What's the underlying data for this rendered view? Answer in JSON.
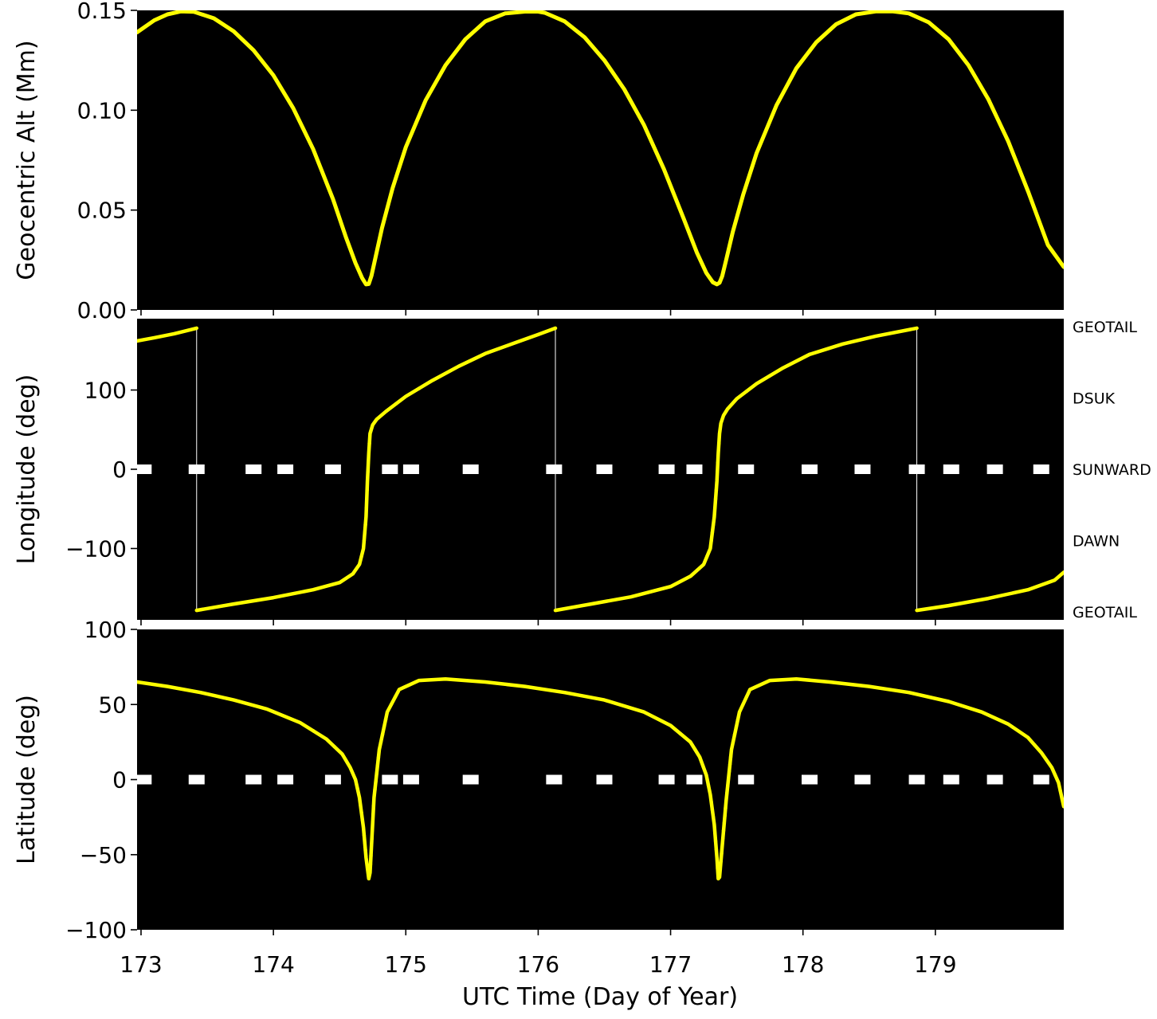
{
  "figure": {
    "xlabel": "UTC Time (Day of Year)",
    "background": "#000000",
    "trace_color": "#ffff00",
    "marker_color": "#ffffff"
  },
  "chart_data": [
    {
      "type": "line",
      "ylabel": "Geocentric Alt (Mm)",
      "xlim": [
        172.97,
        179.97
      ],
      "ylim": [
        0.0,
        0.15
      ],
      "yticks": [
        0.0,
        0.05,
        0.1,
        0.15
      ],
      "ytick_labels": [
        "0.00",
        "0.05",
        "0.10",
        "0.15"
      ],
      "series": [
        {
          "x": [
            172.97,
            173.1,
            173.2,
            173.3,
            173.4,
            173.55,
            173.7,
            173.85,
            174.0,
            174.15,
            174.3,
            174.45,
            174.55,
            174.62,
            174.67,
            174.7,
            174.72,
            174.74,
            174.77,
            174.82,
            174.9,
            175.0,
            175.15,
            175.3,
            175.45,
            175.6,
            175.75,
            175.9,
            176.0,
            176.05,
            176.2,
            176.35,
            176.5,
            176.65,
            176.8,
            176.95,
            177.1,
            177.2,
            177.27,
            177.32,
            177.35,
            177.37,
            177.39,
            177.42,
            177.47,
            177.55,
            177.65,
            177.8,
            177.95,
            178.1,
            178.25,
            178.4,
            178.55,
            178.68,
            178.8,
            178.95,
            179.1,
            179.25,
            179.4,
            179.55,
            179.7,
            179.85,
            179.97
          ],
          "y": [
            0.139,
            0.145,
            0.148,
            0.1495,
            0.1493,
            0.146,
            0.1395,
            0.13,
            0.1175,
            0.101,
            0.0805,
            0.0555,
            0.036,
            0.0235,
            0.016,
            0.0128,
            0.013,
            0.017,
            0.026,
            0.041,
            0.061,
            0.0815,
            0.105,
            0.1225,
            0.1355,
            0.1445,
            0.1485,
            0.1494,
            0.1494,
            0.1488,
            0.1445,
            0.1365,
            0.125,
            0.1105,
            0.0925,
            0.0705,
            0.0455,
            0.0285,
            0.0185,
            0.0138,
            0.0128,
            0.0136,
            0.017,
            0.025,
            0.039,
            0.058,
            0.0785,
            0.1025,
            0.121,
            0.134,
            0.143,
            0.148,
            0.1495,
            0.1495,
            0.1485,
            0.144,
            0.1355,
            0.1225,
            0.1055,
            0.0845,
            0.0595,
            0.0325,
            0.0215
          ]
        }
      ]
    },
    {
      "type": "scatter",
      "ylabel": "Longitude (deg)",
      "xlim": [
        172.97,
        179.97
      ],
      "ylim": [
        -190,
        190
      ],
      "yticks": [
        -100,
        0,
        100
      ],
      "ytick_labels": [
        "−100",
        "0",
        "100"
      ],
      "right_labels": [
        {
          "text": "GEOTAIL",
          "value": 180
        },
        {
          "text": "DSUK",
          "value": 90
        },
        {
          "text": "SUNWARD",
          "value": 0
        },
        {
          "text": "DAWN",
          "value": -90
        },
        {
          "text": "GEOTAIL",
          "value": -180
        }
      ],
      "markers_y": 0,
      "marker_x": [
        173.02,
        173.42,
        173.85,
        174.09,
        174.45,
        174.88,
        175.04,
        175.49,
        176.12,
        176.5,
        176.97,
        177.18,
        177.57,
        178.05,
        178.45,
        178.86,
        179.12,
        179.45,
        179.8
      ],
      "series": [
        {
          "x": [
            172.97,
            173.1,
            173.25,
            173.42,
            173.42,
            173.7,
            174.0,
            174.3,
            174.5,
            174.6,
            174.65,
            174.68,
            174.7,
            174.71,
            174.72,
            174.73,
            174.75,
            174.78,
            174.85,
            175.0,
            175.2,
            175.4,
            175.6,
            175.8,
            176.0,
            176.13,
            176.13,
            176.4,
            176.7,
            177.0,
            177.15,
            177.25,
            177.3,
            177.33,
            177.35,
            177.36,
            177.37,
            177.38,
            177.4,
            177.43,
            177.5,
            177.65,
            177.85,
            178.05,
            178.3,
            178.55,
            178.86,
            178.86,
            179.1,
            179.4,
            179.7,
            179.9,
            179.97
          ],
          "y": [
            162,
            166,
            171,
            178,
            -178,
            -170,
            -162,
            -152,
            -143,
            -132,
            -120,
            -100,
            -60,
            -15,
            20,
            45,
            56,
            63,
            73,
            92,
            112,
            130,
            146,
            158,
            170,
            178,
            -178,
            -170,
            -161,
            -148,
            -135,
            -120,
            -100,
            -60,
            -15,
            20,
            45,
            58,
            68,
            76,
            89,
            108,
            128,
            145,
            158,
            168,
            178,
            -178,
            -172,
            -163,
            -152,
            -140,
            -130
          ]
        }
      ]
    },
    {
      "type": "scatter",
      "ylabel": "Latitude (deg)",
      "xlim": [
        172.97,
        179.97
      ],
      "ylim": [
        -100,
        100
      ],
      "yticks": [
        -100,
        -50,
        0,
        50,
        100
      ],
      "ytick_labels": [
        "−100",
        "−50",
        "0",
        "50",
        "100"
      ],
      "markers_y": 0,
      "marker_x": [
        173.02,
        173.42,
        173.85,
        174.09,
        174.45,
        174.88,
        175.04,
        175.49,
        176.12,
        176.5,
        176.97,
        177.18,
        177.57,
        178.05,
        178.45,
        178.86,
        179.12,
        179.45,
        179.8
      ],
      "series": [
        {
          "x": [
            172.97,
            173.2,
            173.45,
            173.7,
            173.95,
            174.2,
            174.4,
            174.52,
            174.58,
            174.62,
            174.65,
            174.68,
            174.7,
            174.72,
            174.73,
            174.74,
            174.76,
            174.8,
            174.86,
            174.95,
            175.1,
            175.3,
            175.6,
            175.9,
            176.2,
            176.5,
            176.8,
            177.0,
            177.15,
            177.22,
            177.27,
            177.3,
            177.33,
            177.35,
            177.36,
            177.37,
            177.39,
            177.42,
            177.46,
            177.52,
            177.6,
            177.75,
            177.95,
            178.2,
            178.5,
            178.8,
            179.1,
            179.35,
            179.55,
            179.7,
            179.8,
            179.88,
            179.93,
            179.97
          ],
          "y": [
            65,
            62,
            58,
            53,
            47,
            38,
            27,
            17,
            8,
            0,
            -12,
            -32,
            -52,
            -66,
            -62,
            -45,
            -12,
            20,
            45,
            60,
            66,
            67,
            65,
            62,
            58,
            53,
            45,
            36,
            25,
            15,
            3,
            -10,
            -30,
            -52,
            -66,
            -65,
            -44,
            -14,
            20,
            45,
            60,
            66,
            67,
            65,
            62,
            58,
            52,
            45,
            37,
            28,
            18,
            8,
            -2,
            -18
          ]
        }
      ]
    }
  ]
}
